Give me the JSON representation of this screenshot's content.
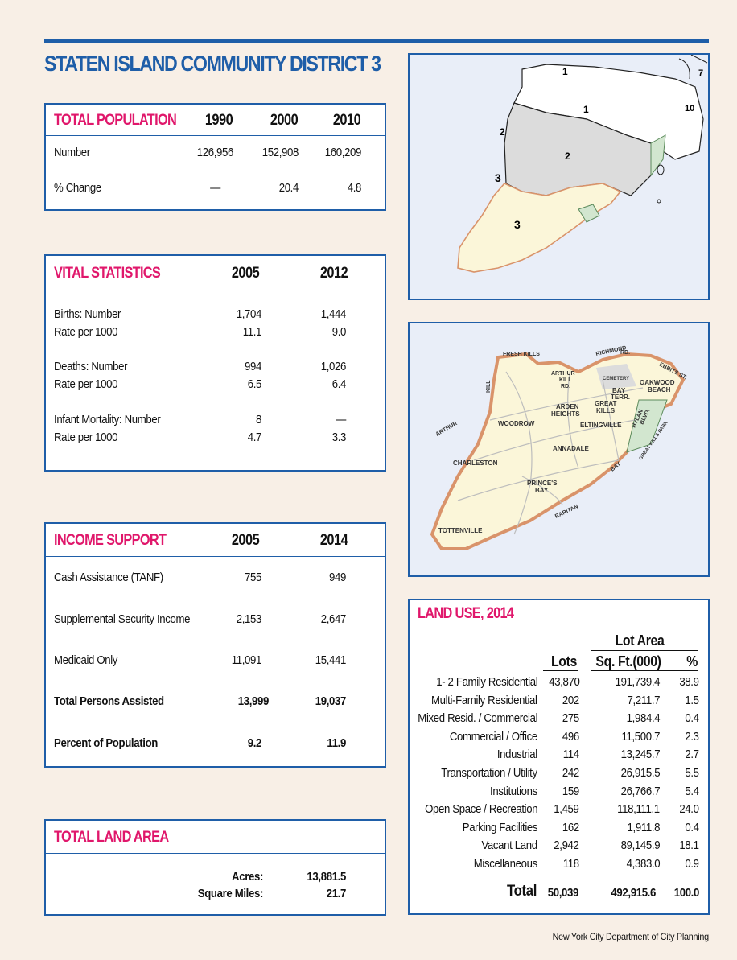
{
  "page_title": "STATEN ISLAND COMMUNITY DISTRICT 3",
  "population": {
    "heading": "TOTAL POPULATION",
    "years": [
      "1990",
      "2000",
      "2010"
    ],
    "rows": [
      {
        "label": "Number",
        "values": [
          "126,956",
          "152,908",
          "160,209"
        ]
      },
      {
        "label": "% Change",
        "values": [
          "—",
          "20.4",
          "4.8"
        ]
      }
    ]
  },
  "vital": {
    "heading": "VITAL STATISTICS",
    "years": [
      "2005",
      "2012"
    ],
    "groups": [
      {
        "label1": "Births: Number",
        "label2": "Rate per 1000",
        "v2005": [
          "1,704",
          "11.1"
        ],
        "v2012": [
          "1,444",
          "9.0"
        ]
      },
      {
        "label1": "Deaths: Number",
        "label2": "Rate per 1000",
        "v2005": [
          "994",
          "6.5"
        ],
        "v2012": [
          "1,026",
          "6.4"
        ]
      },
      {
        "label1": "Infant Mortality: Number",
        "label2": "Rate per 1000",
        "v2005": [
          "8",
          "4.7"
        ],
        "v2012": [
          "—",
          "3.3"
        ]
      }
    ]
  },
  "income": {
    "heading": "INCOME SUPPORT",
    "years": [
      "2005",
      "2014"
    ],
    "rows": [
      {
        "label": "Cash Assistance (TANF)",
        "v2005": "755",
        "v2014": "949"
      },
      {
        "label": "Supplemental Security Income",
        "v2005": "2,153",
        "v2014": "2,647"
      },
      {
        "label": "Medicaid Only",
        "v2005": "11,091",
        "v2014": "15,441"
      },
      {
        "label": "Total Persons Assisted",
        "v2005": "13,999",
        "v2014": "19,037"
      },
      {
        "label": "Percent of Population",
        "v2005": "9.2",
        "v2014": "11.9"
      }
    ]
  },
  "land_area": {
    "heading": "TOTAL LAND AREA",
    "acres_label": "Acres:",
    "acres": "13,881.5",
    "sqmi_label": "Square Miles:",
    "sqmi": "21.7"
  },
  "land_use": {
    "heading": "LAND USE, 2014",
    "lot_area_header": "Lot Area",
    "col_lots": "Lots",
    "col_sqft": "Sq. Ft.(000)",
    "col_pct": "%",
    "rows": [
      {
        "name": "1- 2 Family Residential",
        "lots": "43,870",
        "area": "191,739.4",
        "pct": "38.9"
      },
      {
        "name": "Multi-Family Residential",
        "lots": "202",
        "area": "7,211.7",
        "pct": "1.5"
      },
      {
        "name": "Mixed Resid. / Commercial",
        "lots": "275",
        "area": "1,984.4",
        "pct": "0.4"
      },
      {
        "name": "Commercial / Office",
        "lots": "496",
        "area": "11,500.7",
        "pct": "2.3"
      },
      {
        "name": "Industrial",
        "lots": "114",
        "area": "13,245.7",
        "pct": "2.7"
      },
      {
        "name": "Transportation / Utility",
        "lots": "242",
        "area": "26,915.5",
        "pct": "5.5"
      },
      {
        "name": "Institutions",
        "lots": "159",
        "area": "26,766.7",
        "pct": "5.4"
      },
      {
        "name": "Open Space / Recreation",
        "lots": "1,459",
        "area": "118,111.1",
        "pct": "24.0"
      },
      {
        "name": "Parking Facilities",
        "lots": "162",
        "area": "1,911.8",
        "pct": "0.4"
      },
      {
        "name": "Vacant Land",
        "lots": "2,942",
        "area": "89,145.9",
        "pct": "18.1"
      },
      {
        "name": "Miscellaneous",
        "lots": "118",
        "area": "4,383.0",
        "pct": "0.9"
      }
    ],
    "total_label": "Total",
    "total_lots": "50,039",
    "total_area": "492,915.6",
    "total_pct": "100.0"
  },
  "district_map": {
    "labels": [
      "1",
      "1",
      "2",
      "2",
      "3",
      "3",
      "7",
      "10"
    ]
  },
  "neighborhood_map": {
    "labels": {
      "fresh_kills": "FRESH KILLS",
      "kill": "KILL",
      "arthur": "ARTHUR",
      "arthur_kill_rd_1": "ARTHUR",
      "arthur_kill_rd_2": "KILL",
      "arthur_kill_rd_3": "RD.",
      "richmond_rd_1": "RICHMOND",
      "richmond_rd_2": "RD.",
      "ebbits": "EBBITS ST.",
      "cemetery": "CEMETERY",
      "oakwood_1": "OAKWOOD",
      "oakwood_2": "BEACH",
      "bay_terr_1": "BAY",
      "bay_terr_2": "TERR.",
      "great_kills_1": "GREAT",
      "great_kills_2": "KILLS",
      "arden_1": "ARDEN",
      "arden_2": "HEIGHTS",
      "hylan_1": "HYLAN",
      "hylan_2": "BLVD.",
      "woodrow": "WOODROW",
      "eltingville": "ELTINGVILLE",
      "great_kills_park": "GREAT KILLS PARK",
      "annadale": "ANNADALE",
      "charleston": "CHARLESTON",
      "bay": "BAY",
      "princes_1": "PRINCE'S",
      "princes_2": "BAY",
      "raritan": "RARITAN",
      "tottenville": "TOTTENVILLE"
    }
  },
  "footer": "New York City Department of City Planning",
  "colors": {
    "blue": "#1f5ea8",
    "pink": "#e0176b",
    "background": "#f8efe6",
    "district3": "#fbf6d9",
    "park": "#d2e6cf",
    "outline": "#d9936a"
  }
}
